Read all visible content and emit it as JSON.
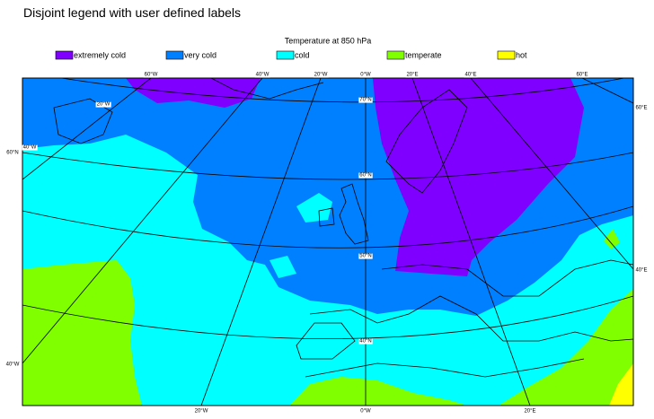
{
  "title": "Disjoint legend with user defined labels",
  "legend": {
    "title": "Temperature at 850 hPa",
    "items": [
      {
        "label": "extremely cold",
        "color": "#8000ff"
      },
      {
        "label": "very cold",
        "color": "#0080ff"
      },
      {
        "label": "cold",
        "color": "#00ffff"
      },
      {
        "label": "temperate",
        "color": "#80ff00"
      },
      {
        "label": "hot",
        "color": "#ffff00"
      }
    ]
  },
  "graticule_labels": {
    "top": [
      "60°W",
      "40°W",
      "20°W",
      "0°W",
      "20°E",
      "40°E",
      "60°E"
    ],
    "left": [
      "60°N",
      "40°W",
      "20°W",
      "40°W"
    ],
    "bottom": [
      "20°W",
      "0°W",
      "20°E"
    ],
    "right": [
      "60°E",
      "40°E"
    ],
    "inner": [
      "70°N",
      "60°N",
      "50°N",
      "40°N"
    ]
  }
}
